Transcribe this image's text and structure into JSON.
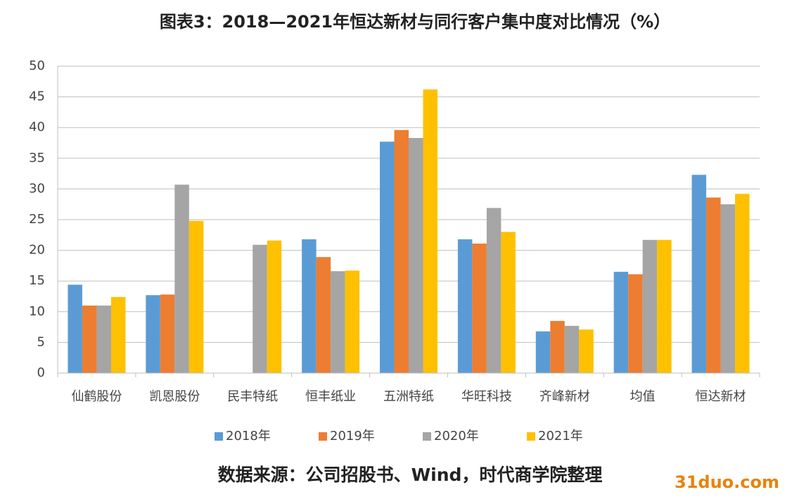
{
  "chart_data": {
    "type": "bar",
    "title": "图表3：2018—2021年恒达新材与同行客户集中度对比情况（%）",
    "source": "数据来源：公司招股书、Wind，时代商学院整理",
    "watermark": "31duo.com",
    "categories": [
      "仙鹤股份",
      "凯恩股份",
      "民丰特纸",
      "恒丰纸业",
      "五洲特纸",
      "华旺科技",
      "齐峰新材",
      "均值",
      "恒达新材"
    ],
    "series": [
      {
        "name": "2018年",
        "color": "#5b9bd5",
        "values": [
          14.4,
          12.7,
          null,
          21.8,
          37.7,
          21.8,
          6.8,
          16.5,
          32.3
        ]
      },
      {
        "name": "2019年",
        "color": "#ed7d31",
        "values": [
          11.0,
          12.8,
          null,
          18.9,
          39.6,
          21.1,
          8.5,
          16.1,
          28.6
        ]
      },
      {
        "name": "2020年",
        "color": "#a5a5a5",
        "values": [
          11.0,
          30.7,
          20.9,
          16.6,
          38.3,
          26.9,
          7.7,
          21.7,
          27.5
        ]
      },
      {
        "name": "2021年",
        "color": "#ffc000",
        "values": [
          12.4,
          24.8,
          21.6,
          16.7,
          46.2,
          23.0,
          7.1,
          21.7,
          29.2
        ]
      }
    ],
    "ylim": [
      0,
      50
    ],
    "yticks": [
      0,
      5,
      10,
      15,
      20,
      25,
      30,
      35,
      40,
      45,
      50
    ],
    "grid": true,
    "legend": "bottom"
  }
}
